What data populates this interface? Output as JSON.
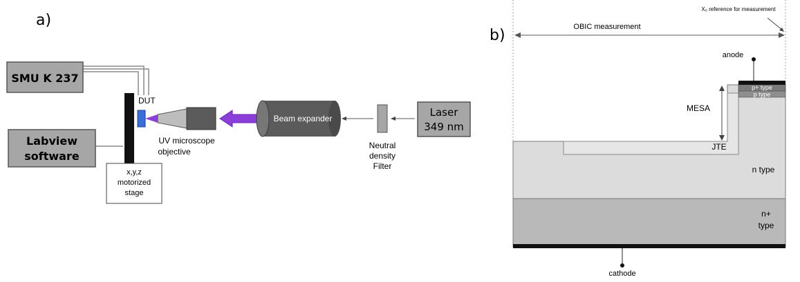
{
  "panel_a": {
    "label": "a)",
    "smu": "SMU K 237",
    "labview_line1": "Labview",
    "labview_line2": "software",
    "dut": "DUT",
    "stage_line1": "x,y,z",
    "stage_line2": "motorized",
    "stage_line3": "stage",
    "objective_line1": "UV microscope",
    "objective_line2": "objective",
    "beam_expander": "Beam expander",
    "filter_line1": "Neutral",
    "filter_line2": "density",
    "filter_line3": "Filter",
    "laser_line1": "Laser",
    "laser_line2": "349 nm"
  },
  "panel_b": {
    "label": "b)",
    "x0_reference": "X₀ reference for measurement",
    "obic": "OBIC measurement",
    "anode": "anode",
    "p_plus_type": "p+ type",
    "p_type": "p type",
    "mesa": "MESA",
    "jte": "JTE",
    "n_type": "n type",
    "n_plus_line1": "n+",
    "n_plus_line2": "type",
    "cathode": "cathode"
  },
  "colors": {
    "box_fill": "#a6a6a6",
    "uv_arrow": "#8b3fd9",
    "dut_blue": "#3a6fd8",
    "n_type_fill": "#dcdcdc",
    "n_plus_fill": "#b9b9b9",
    "p_fill": "#8d8d8d",
    "cylinder_dark": "#5b5b5b"
  }
}
